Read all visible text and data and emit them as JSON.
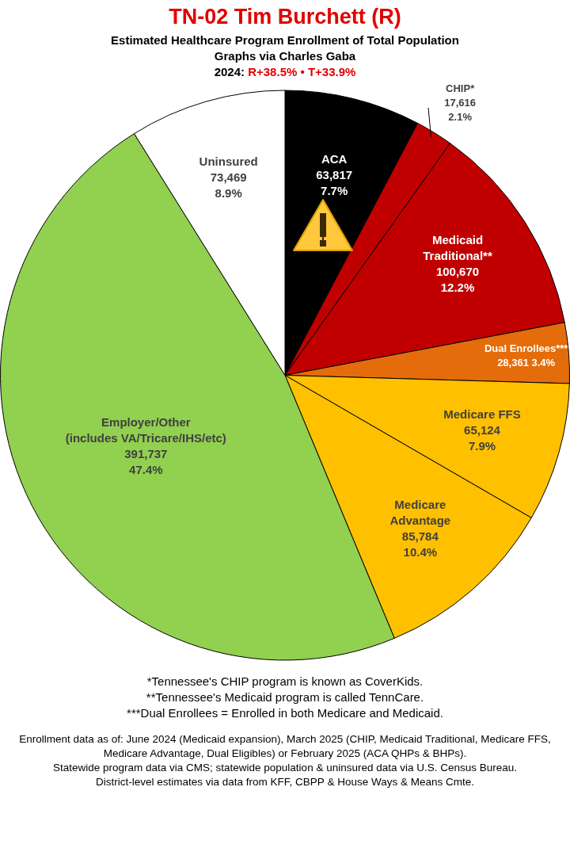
{
  "chart_data": {
    "type": "pie",
    "title": "TN-02 Tim Burchett (R)",
    "subtitle": "Estimated Healthcare Program Enrollment of Total Population\nGraphs via Charles Gaba",
    "categories": [
      "ACA",
      "CHIP*",
      "Medicaid\nTraditional**",
      "Dual Enrollees***",
      "Medicare FFS",
      "Medicare\nAdvantage",
      "Employer/Other\n(includes VA/Tricare/IHS/etc)",
      "Uninsured"
    ],
    "values": [
      63817,
      17616,
      100670,
      28361,
      65124,
      85784,
      391737,
      73469
    ],
    "value_labels": [
      "63,817\n7.7%",
      "17,616\n2.1%",
      "100,670\n12.2%",
      "28,361 3.4%",
      "65,124\n7.9%",
      "85,784\n10.4%",
      "391,737\n47.4%",
      "73,469\n8.9%"
    ],
    "colors": [
      "#000000",
      "#c00000",
      "#c00000",
      "#e46c0a",
      "#ffc000",
      "#ffc000",
      "#92d050",
      "#ffffff"
    ],
    "legend": false,
    "annotations": [
      "2024: R+38.5% • T+33.9%",
      "*Tennessee's CHIP program is known as CoverKids.\n**Tennessee's Medicaid program is called TennCare.\n***Dual Enrollees = Enrolled in both Medicare and Medicaid.",
      "Enrollment data as of: June 2024 (Medicaid expansion), March 2025 (CHIP, Medicaid Traditional, Medicare FFS, Medicare Advantage, Dual Eligibles) or February 2025 (ACA QHPs & BHPs).\nStatewide program data via CMS; statewide population & uninsured data via U.S. Census Bureau.\nDistrict-level estimates via data from KFF, CBPP & House Ways & Means Cmte."
    ]
  }
}
